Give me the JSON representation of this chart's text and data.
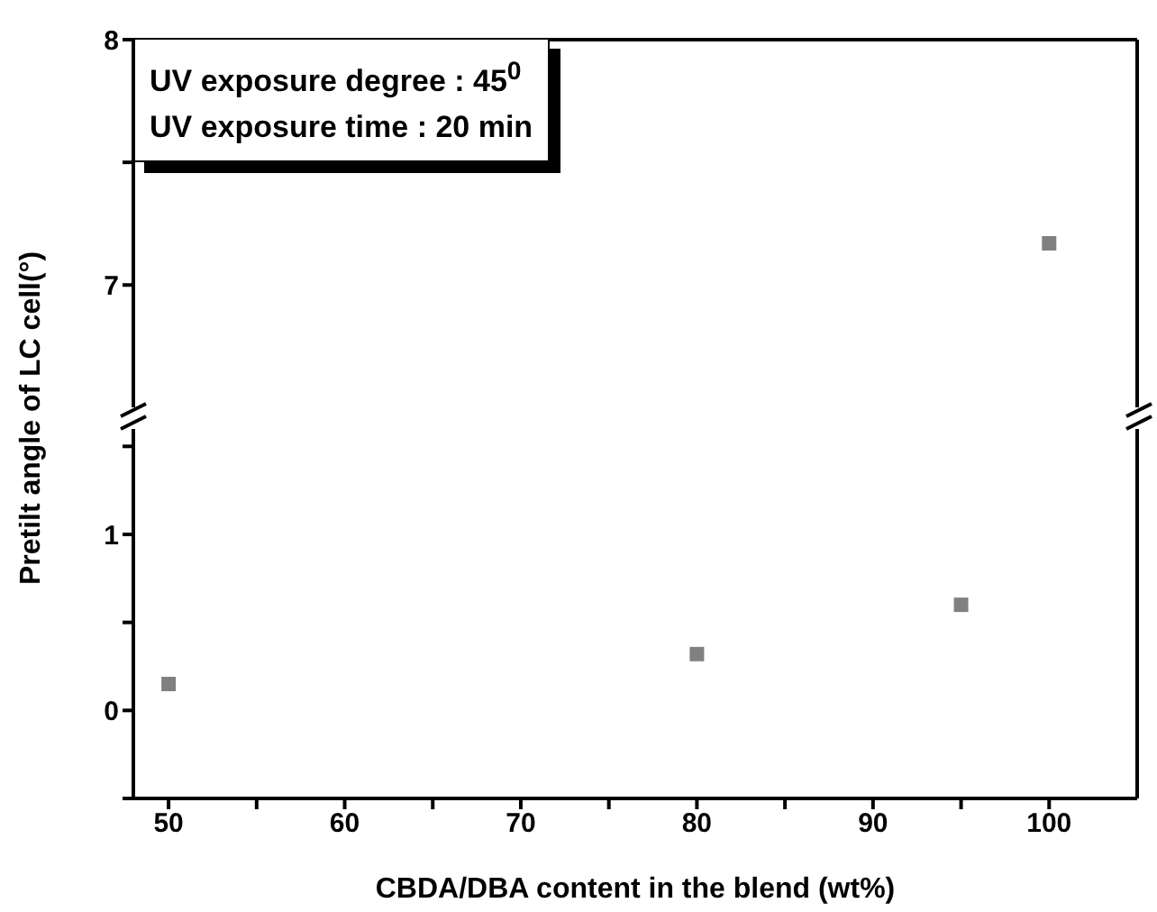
{
  "chart_data": [
    {
      "type": "scatter",
      "series": [
        {
          "color": "#808080",
          "x": [
            100
          ],
          "values": [
            7.17
          ]
        }
      ],
      "xlim": [
        48,
        105
      ],
      "xticks": [
        50,
        60,
        70,
        80,
        90,
        100
      ],
      "ylim": [
        6.45,
        8
      ],
      "yticks": [
        7,
        {
          "value": 7.5,
          "label": null
        },
        8
      ],
      "marker": "square",
      "tick_labels": "y",
      "annotations": [
        "UV exposure degree : 45$^{0}$",
        "UV exposure time : 20 min"
      ]
    },
    {
      "type": "scatter",
      "series": [
        {
          "color": "#808080",
          "x": [
            50,
            80,
            95
          ],
          "values": [
            0.15,
            0.32,
            0.6
          ]
        }
      ],
      "xlim": [
        48,
        105
      ],
      "xticks": [
        50,
        {
          "value": 55,
          "label": null
        },
        60,
        {
          "value": 65,
          "label": null
        },
        70,
        {
          "value": 75,
          "label": null
        },
        80,
        {
          "value": 85,
          "label": null
        },
        90,
        {
          "value": 95,
          "label": null
        },
        100
      ],
      "ylim": [
        -0.5,
        1.65
      ],
      "yticks": [
        {
          "value": -0.5,
          "label": null
        },
        0,
        {
          "value": 0.5,
          "label": null
        },
        1,
        {
          "value": 1.5,
          "label": null
        }
      ],
      "marker": "square",
      "xlabel": "CBDA/DBA content in the blend (wt%)",
      "ylabel": "Pretilt angle of LC cell(°)"
    }
  ]
}
